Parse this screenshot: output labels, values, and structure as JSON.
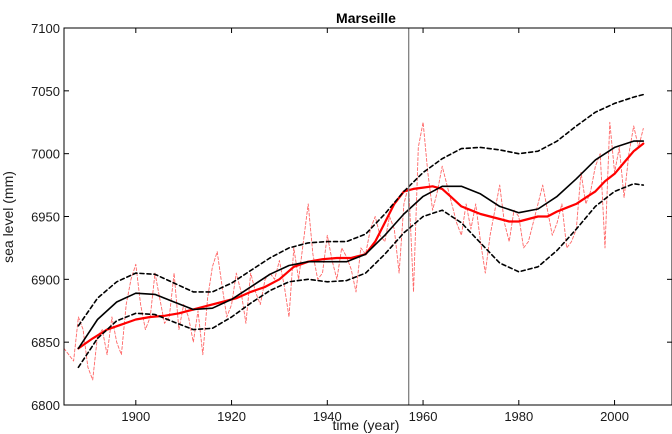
{
  "chart_data": {
    "type": "line",
    "title": "Marseille",
    "xlabel": "time (year)",
    "ylabel": "sea level (mm)",
    "xlim": [
      1885,
      2012
    ],
    "ylim": [
      6800,
      7100
    ],
    "xticks": [
      1900,
      1920,
      1940,
      1960,
      1980,
      2000
    ],
    "yticks": [
      6800,
      6850,
      6900,
      6950,
      7000,
      7050,
      7100
    ],
    "grid": false,
    "legend": "none",
    "vline_x": 1957,
    "colors": {
      "fit": "#000000",
      "band": "#000000",
      "smoothed": "#ff0000",
      "annual": "#ff6666",
      "vline": "#808080"
    },
    "series": [
      {
        "key": "annual",
        "style": "thin-dashed",
        "points": [
          [
            1885,
            6845
          ],
          [
            1886,
            6840
          ],
          [
            1887,
            6835
          ],
          [
            1888,
            6870
          ],
          [
            1889,
            6860
          ],
          [
            1890,
            6830
          ],
          [
            1891,
            6820
          ],
          [
            1892,
            6855
          ],
          [
            1893,
            6860
          ],
          [
            1894,
            6840
          ],
          [
            1895,
            6870
          ],
          [
            1896,
            6850
          ],
          [
            1897,
            6840
          ],
          [
            1898,
            6880
          ],
          [
            1899,
            6900
          ],
          [
            1900,
            6912
          ],
          [
            1901,
            6880
          ],
          [
            1902,
            6860
          ],
          [
            1903,
            6870
          ],
          [
            1904,
            6905
          ],
          [
            1905,
            6885
          ],
          [
            1906,
            6865
          ],
          [
            1907,
            6870
          ],
          [
            1908,
            6905
          ],
          [
            1909,
            6860
          ],
          [
            1910,
            6880
          ],
          [
            1911,
            6870
          ],
          [
            1912,
            6850
          ],
          [
            1913,
            6875
          ],
          [
            1914,
            6840
          ],
          [
            1915,
            6885
          ],
          [
            1916,
            6910
          ],
          [
            1917,
            6922
          ],
          [
            1918,
            6895
          ],
          [
            1919,
            6870
          ],
          [
            1920,
            6880
          ],
          [
            1921,
            6905
          ],
          [
            1922,
            6890
          ],
          [
            1923,
            6865
          ],
          [
            1924,
            6905
          ],
          [
            1925,
            6890
          ],
          [
            1926,
            6880
          ],
          [
            1927,
            6900
          ],
          [
            1928,
            6905
          ],
          [
            1929,
            6900
          ],
          [
            1930,
            6915
          ],
          [
            1931,
            6895
          ],
          [
            1932,
            6870
          ],
          [
            1933,
            6925
          ],
          [
            1934,
            6900
          ],
          [
            1935,
            6930
          ],
          [
            1936,
            6960
          ],
          [
            1937,
            6920
          ],
          [
            1938,
            6900
          ],
          [
            1939,
            6905
          ],
          [
            1940,
            6935
          ],
          [
            1941,
            6915
          ],
          [
            1942,
            6900
          ],
          [
            1943,
            6925
          ],
          [
            1944,
            6918
          ],
          [
            1945,
            6908
          ],
          [
            1946,
            6890
          ],
          [
            1947,
            6925
          ],
          [
            1948,
            6920
          ],
          [
            1949,
            6940
          ],
          [
            1950,
            6950
          ],
          [
            1951,
            6935
          ],
          [
            1952,
            6930
          ],
          [
            1953,
            6950
          ],
          [
            1954,
            6940
          ],
          [
            1955,
            6905
          ],
          [
            1956,
            6960
          ],
          [
            1957,
            6975
          ],
          [
            1958,
            6890
          ],
          [
            1959,
            7005
          ],
          [
            1960,
            7025
          ],
          [
            1961,
            6985
          ],
          [
            1962,
            6955
          ],
          [
            1963,
            6970
          ],
          [
            1964,
            6990
          ],
          [
            1965,
            6975
          ],
          [
            1966,
            6960
          ],
          [
            1967,
            6945
          ],
          [
            1968,
            6935
          ],
          [
            1969,
            6960
          ],
          [
            1970,
            6940
          ],
          [
            1971,
            6960
          ],
          [
            1972,
            6930
          ],
          [
            1973,
            6905
          ],
          [
            1974,
            6935
          ],
          [
            1975,
            6955
          ],
          [
            1976,
            6975
          ],
          [
            1977,
            6945
          ],
          [
            1978,
            6930
          ],
          [
            1979,
            6955
          ],
          [
            1980,
            6950
          ],
          [
            1981,
            6925
          ],
          [
            1982,
            6930
          ],
          [
            1983,
            6945
          ],
          [
            1984,
            6960
          ],
          [
            1985,
            6975
          ],
          [
            1986,
            6955
          ],
          [
            1987,
            6935
          ],
          [
            1988,
            6945
          ],
          [
            1989,
            6960
          ],
          [
            1990,
            6925
          ],
          [
            1991,
            6930
          ],
          [
            1992,
            6940
          ],
          [
            1993,
            6985
          ],
          [
            1994,
            6960
          ],
          [
            1995,
            6970
          ],
          [
            1996,
            6990
          ],
          [
            1997,
            7000
          ],
          [
            1998,
            6925
          ],
          [
            1999,
            7025
          ],
          [
            2000,
            6985
          ],
          [
            2001,
            7005
          ],
          [
            2002,
            6965
          ],
          [
            2003,
            7000
          ],
          [
            2004,
            7022
          ],
          [
            2005,
            7005
          ],
          [
            2006,
            7020
          ]
        ]
      },
      {
        "key": "smoothed",
        "style": "thick",
        "points": [
          [
            1888,
            6845
          ],
          [
            1891,
            6853
          ],
          [
            1894,
            6860
          ],
          [
            1897,
            6864
          ],
          [
            1900,
            6868
          ],
          [
            1903,
            6870
          ],
          [
            1906,
            6871
          ],
          [
            1909,
            6873
          ],
          [
            1912,
            6876
          ],
          [
            1915,
            6879
          ],
          [
            1918,
            6882
          ],
          [
            1921,
            6885
          ],
          [
            1924,
            6890
          ],
          [
            1927,
            6894
          ],
          [
            1930,
            6900
          ],
          [
            1933,
            6910
          ],
          [
            1936,
            6914
          ],
          [
            1939,
            6916
          ],
          [
            1942,
            6917
          ],
          [
            1945,
            6917
          ],
          [
            1948,
            6920
          ],
          [
            1950,
            6930
          ],
          [
            1952,
            6945
          ],
          [
            1954,
            6960
          ],
          [
            1956,
            6970
          ],
          [
            1958,
            6972
          ],
          [
            1960,
            6973
          ],
          [
            1962,
            6974
          ],
          [
            1964,
            6972
          ],
          [
            1966,
            6965
          ],
          [
            1968,
            6958
          ],
          [
            1970,
            6955
          ],
          [
            1972,
            6952
          ],
          [
            1974,
            6950
          ],
          [
            1976,
            6948
          ],
          [
            1978,
            6946
          ],
          [
            1980,
            6946
          ],
          [
            1982,
            6948
          ],
          [
            1984,
            6950
          ],
          [
            1986,
            6950
          ],
          [
            1988,
            6954
          ],
          [
            1990,
            6957
          ],
          [
            1992,
            6960
          ],
          [
            1994,
            6965
          ],
          [
            1996,
            6970
          ],
          [
            1998,
            6978
          ],
          [
            2000,
            6984
          ],
          [
            2002,
            6993
          ],
          [
            2004,
            7002
          ],
          [
            2006,
            7008
          ]
        ]
      },
      {
        "key": "fit",
        "style": "solid",
        "points": [
          [
            1888,
            6845
          ],
          [
            1892,
            6868
          ],
          [
            1896,
            6882
          ],
          [
            1900,
            6889
          ],
          [
            1904,
            6888
          ],
          [
            1908,
            6882
          ],
          [
            1912,
            6876
          ],
          [
            1916,
            6877
          ],
          [
            1920,
            6884
          ],
          [
            1924,
            6894
          ],
          [
            1928,
            6904
          ],
          [
            1932,
            6911
          ],
          [
            1936,
            6914
          ],
          [
            1940,
            6914
          ],
          [
            1944,
            6914
          ],
          [
            1948,
            6920
          ],
          [
            1952,
            6935
          ],
          [
            1956,
            6952
          ],
          [
            1960,
            6966
          ],
          [
            1964,
            6974
          ],
          [
            1968,
            6974
          ],
          [
            1972,
            6968
          ],
          [
            1976,
            6958
          ],
          [
            1980,
            6953
          ],
          [
            1984,
            6956
          ],
          [
            1988,
            6966
          ],
          [
            1992,
            6980
          ],
          [
            1996,
            6995
          ],
          [
            2000,
            7005
          ],
          [
            2004,
            7010
          ],
          [
            2006,
            7010
          ]
        ]
      },
      {
        "key": "upper",
        "style": "dashed",
        "points": [
          [
            1888,
            6863
          ],
          [
            1892,
            6885
          ],
          [
            1896,
            6898
          ],
          [
            1900,
            6905
          ],
          [
            1904,
            6904
          ],
          [
            1908,
            6897
          ],
          [
            1912,
            6890
          ],
          [
            1916,
            6890
          ],
          [
            1920,
            6897
          ],
          [
            1924,
            6907
          ],
          [
            1928,
            6917
          ],
          [
            1932,
            6925
          ],
          [
            1936,
            6929
          ],
          [
            1940,
            6930
          ],
          [
            1944,
            6930
          ],
          [
            1948,
            6936
          ],
          [
            1952,
            6952
          ],
          [
            1956,
            6970
          ],
          [
            1960,
            6985
          ],
          [
            1964,
            6996
          ],
          [
            1968,
            7004
          ],
          [
            1972,
            7005
          ],
          [
            1976,
            7003
          ],
          [
            1980,
            7000
          ],
          [
            1984,
            7002
          ],
          [
            1988,
            7010
          ],
          [
            1992,
            7022
          ],
          [
            1996,
            7033
          ],
          [
            2000,
            7040
          ],
          [
            2004,
            7045
          ],
          [
            2006,
            7047
          ]
        ]
      },
      {
        "key": "lower",
        "style": "dashed",
        "points": [
          [
            1888,
            6830
          ],
          [
            1892,
            6853
          ],
          [
            1896,
            6867
          ],
          [
            1900,
            6873
          ],
          [
            1904,
            6872
          ],
          [
            1908,
            6866
          ],
          [
            1912,
            6860
          ],
          [
            1916,
            6861
          ],
          [
            1920,
            6870
          ],
          [
            1924,
            6881
          ],
          [
            1928,
            6891
          ],
          [
            1932,
            6898
          ],
          [
            1936,
            6900
          ],
          [
            1940,
            6898
          ],
          [
            1944,
            6899
          ],
          [
            1948,
            6905
          ],
          [
            1952,
            6920
          ],
          [
            1956,
            6937
          ],
          [
            1960,
            6950
          ],
          [
            1964,
            6955
          ],
          [
            1968,
            6945
          ],
          [
            1972,
            6929
          ],
          [
            1976,
            6913
          ],
          [
            1980,
            6906
          ],
          [
            1984,
            6910
          ],
          [
            1988,
            6923
          ],
          [
            1992,
            6940
          ],
          [
            1996,
            6958
          ],
          [
            2000,
            6970
          ],
          [
            2004,
            6976
          ],
          [
            2006,
            6975
          ]
        ]
      }
    ]
  }
}
